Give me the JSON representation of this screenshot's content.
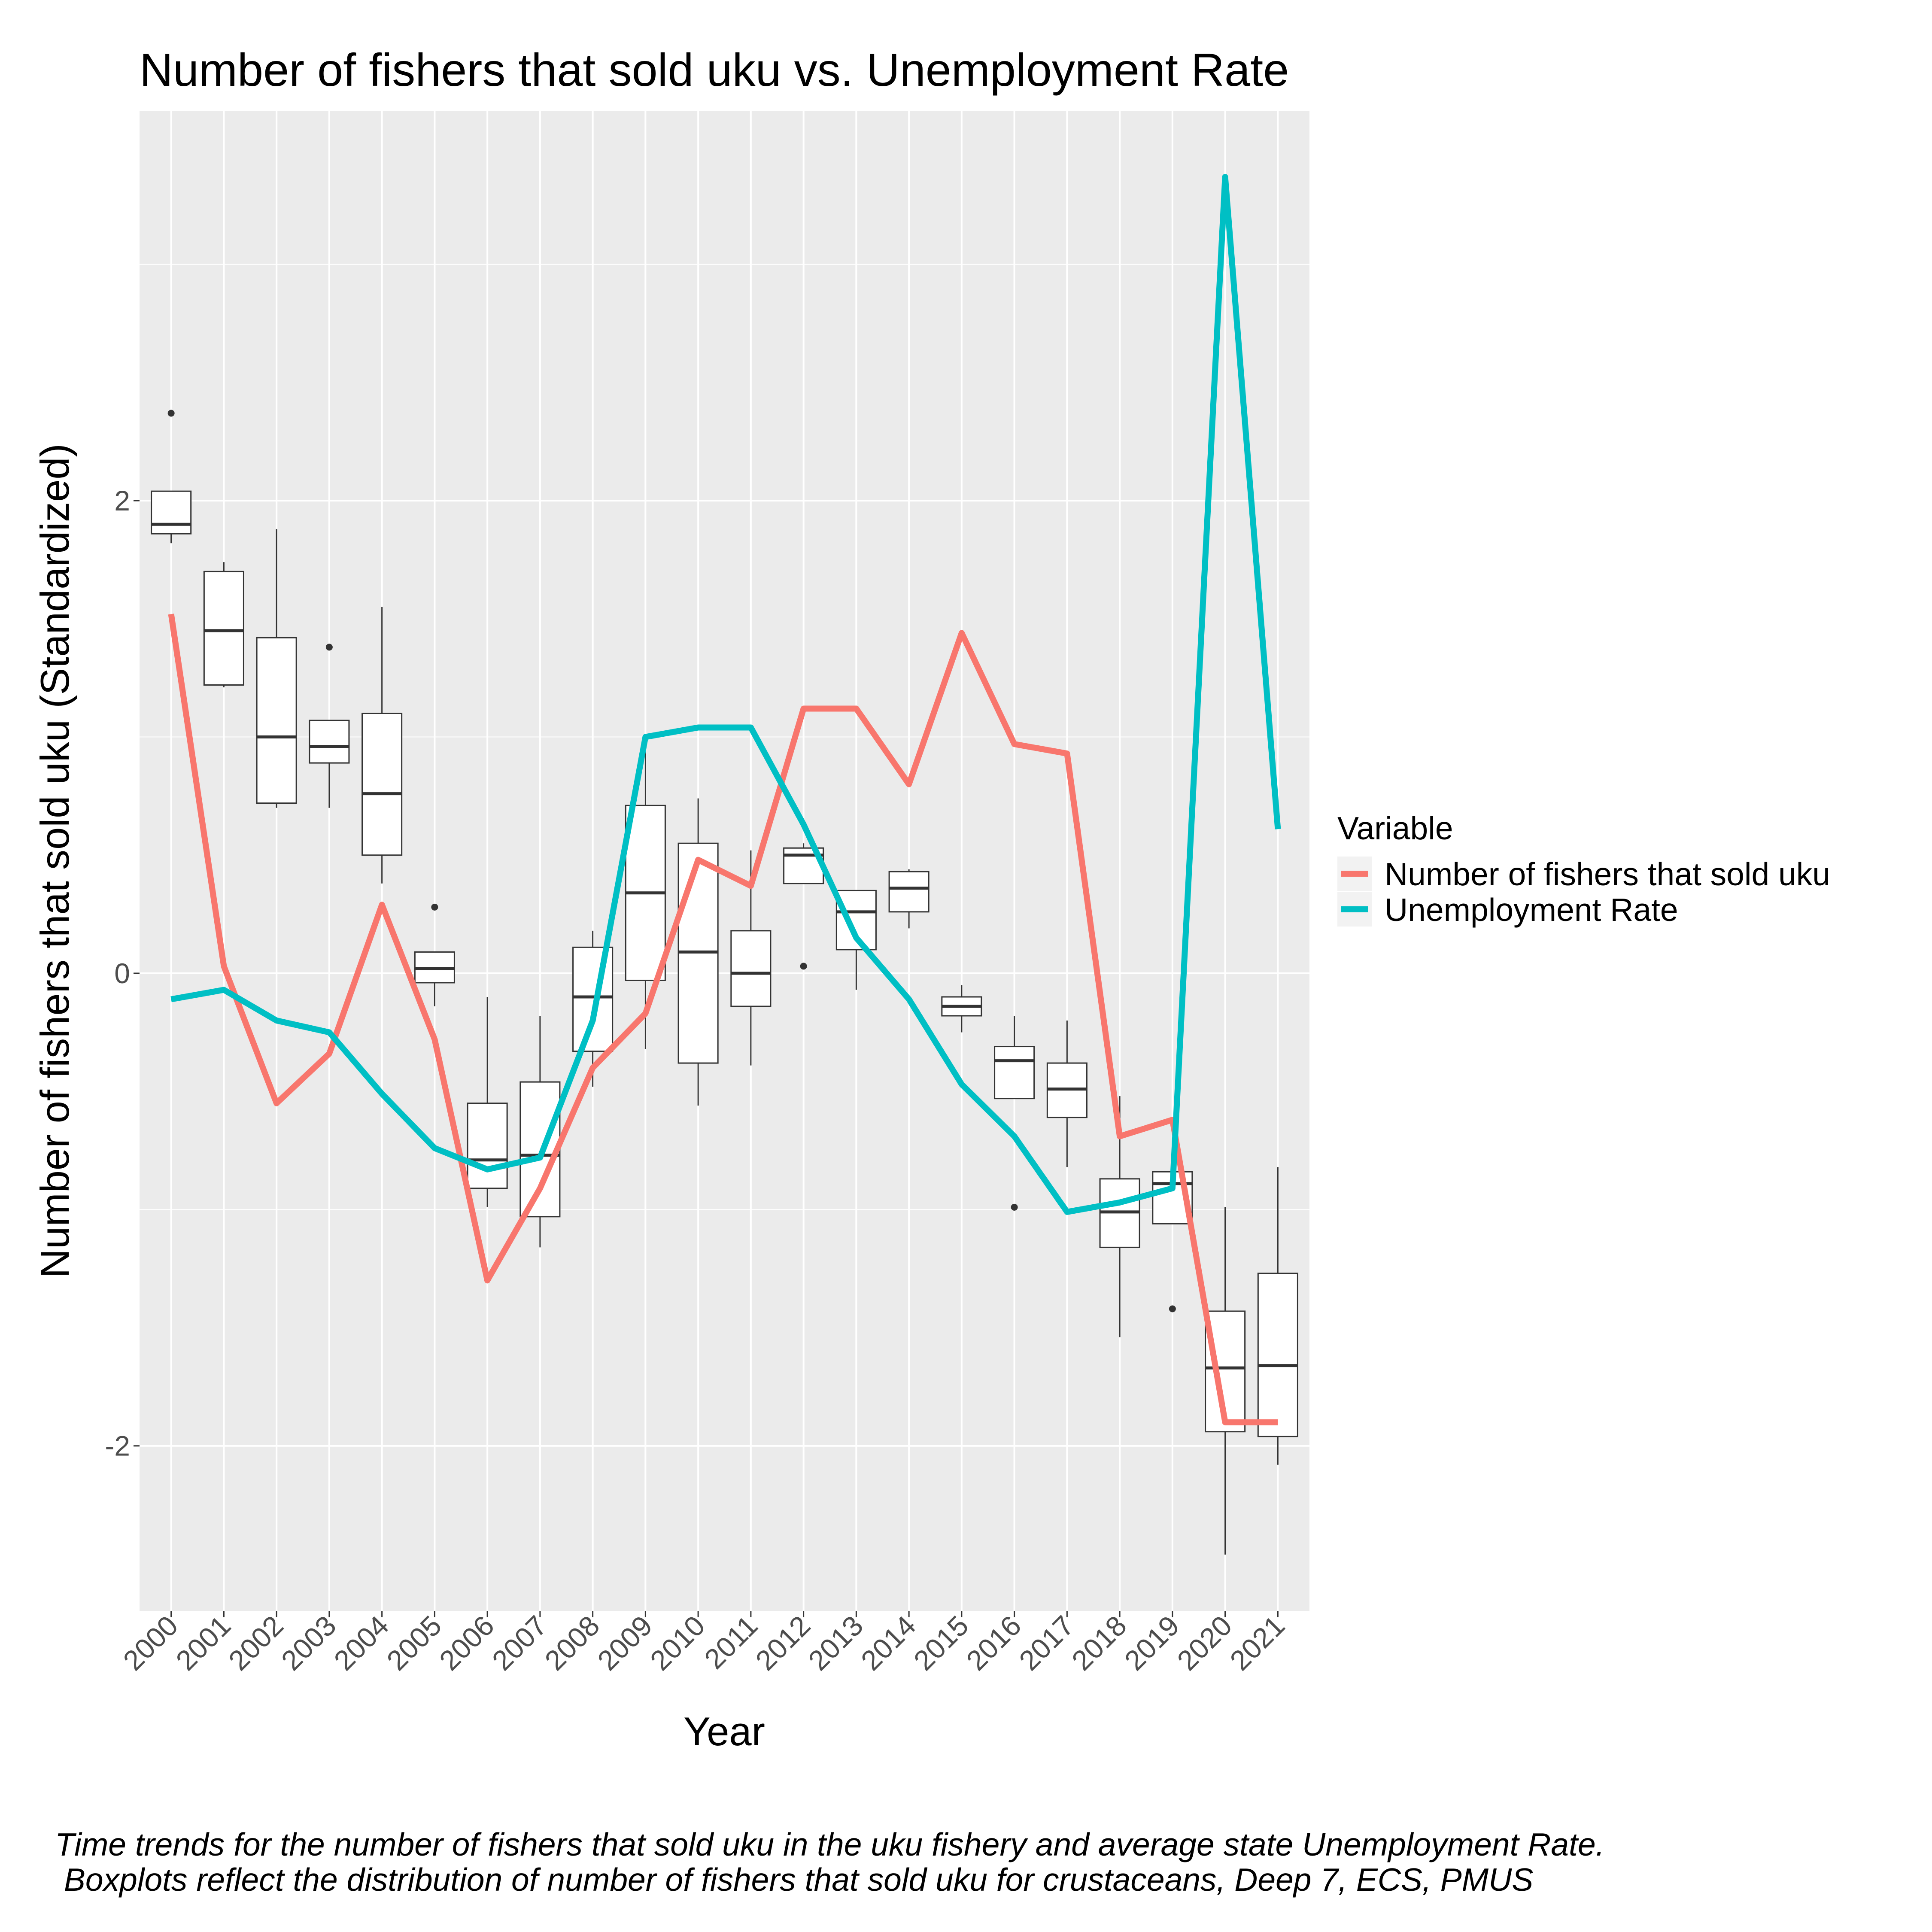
{
  "chart_data": {
    "type": "line",
    "title": "Number of fishers that sold uku vs. Unemployment Rate",
    "xlabel": "Year",
    "ylabel": "Number of fishers that sold uku (Standardized)",
    "categories": [
      "2000",
      "2001",
      "2002",
      "2003",
      "2004",
      "2005",
      "2006",
      "2007",
      "2008",
      "2009",
      "2010",
      "2011",
      "2012",
      "2013",
      "2014",
      "2015",
      "2016",
      "2017",
      "2018",
      "2019",
      "2020",
      "2021"
    ],
    "ylim": [
      -2.7,
      3.65
    ],
    "yticks": [
      -2,
      0,
      2
    ],
    "ytick_labels": [
      "-2",
      "0",
      "2"
    ],
    "grid": true,
    "legend": {
      "title": "Variable",
      "position": "right"
    },
    "series": [
      {
        "name": "Number of fishers that sold uku",
        "color": "#F8766D",
        "values": [
          1.52,
          0.03,
          -0.55,
          -0.34,
          0.29,
          -0.28,
          -1.3,
          -0.91,
          -0.4,
          -0.17,
          0.48,
          0.37,
          1.12,
          1.12,
          0.8,
          1.44,
          0.97,
          0.93,
          -0.69,
          -0.62,
          -1.9,
          -1.9
        ]
      },
      {
        "name": "Unemployment Rate",
        "color": "#00BFC4",
        "values": [
          -0.11,
          -0.07,
          -0.2,
          -0.25,
          -0.51,
          -0.74,
          -0.83,
          -0.78,
          -0.2,
          1.0,
          1.04,
          1.04,
          0.63,
          0.15,
          -0.11,
          -0.47,
          -0.69,
          -1.01,
          -0.97,
          -0.91,
          3.37,
          0.61
        ]
      }
    ],
    "boxplots": [
      {
        "x": "2000",
        "q1": 1.86,
        "median": 1.9,
        "q3": 2.04,
        "lower": 1.82,
        "upper": 2.04,
        "outliers": [
          2.37
        ]
      },
      {
        "x": "2001",
        "q1": 1.22,
        "median": 1.45,
        "q3": 1.7,
        "lower": 1.21,
        "upper": 1.74,
        "outliers": []
      },
      {
        "x": "2002",
        "q1": 0.72,
        "median": 1.0,
        "q3": 1.42,
        "lower": 0.7,
        "upper": 1.88,
        "outliers": []
      },
      {
        "x": "2003",
        "q1": 0.89,
        "median": 0.96,
        "q3": 1.07,
        "lower": 0.7,
        "upper": 1.07,
        "outliers": [
          1.38
        ]
      },
      {
        "x": "2004",
        "q1": 0.5,
        "median": 0.76,
        "q3": 1.1,
        "lower": 0.38,
        "upper": 1.55,
        "outliers": []
      },
      {
        "x": "2005",
        "q1": -0.04,
        "median": 0.02,
        "q3": 0.09,
        "lower": -0.14,
        "upper": 0.09,
        "outliers": [
          0.28
        ]
      },
      {
        "x": "2006",
        "q1": -0.91,
        "median": -0.79,
        "q3": -0.55,
        "lower": -0.99,
        "upper": -0.1,
        "outliers": []
      },
      {
        "x": "2007",
        "q1": -1.03,
        "median": -0.77,
        "q3": -0.46,
        "lower": -1.16,
        "upper": -0.18,
        "outliers": []
      },
      {
        "x": "2008",
        "q1": -0.33,
        "median": -0.1,
        "q3": 0.11,
        "lower": -0.48,
        "upper": 0.18,
        "outliers": []
      },
      {
        "x": "2009",
        "q1": -0.03,
        "median": 0.34,
        "q3": 0.71,
        "lower": -0.32,
        "upper": 0.95,
        "outliers": []
      },
      {
        "x": "2010",
        "q1": -0.38,
        "median": 0.09,
        "q3": 0.55,
        "lower": -0.56,
        "upper": 0.74,
        "outliers": []
      },
      {
        "x": "2011",
        "q1": -0.14,
        "median": 0.0,
        "q3": 0.18,
        "lower": -0.39,
        "upper": 0.52,
        "outliers": []
      },
      {
        "x": "2012",
        "q1": 0.38,
        "median": 0.5,
        "q3": 0.53,
        "lower": 0.38,
        "upper": 0.55,
        "outliers": [
          0.03
        ]
      },
      {
        "x": "2013",
        "q1": 0.1,
        "median": 0.26,
        "q3": 0.35,
        "lower": -0.07,
        "upper": 0.35,
        "outliers": []
      },
      {
        "x": "2014",
        "q1": 0.26,
        "median": 0.36,
        "q3": 0.43,
        "lower": 0.19,
        "upper": 0.44,
        "outliers": []
      },
      {
        "x": "2015",
        "q1": -0.18,
        "median": -0.14,
        "q3": -0.1,
        "lower": -0.25,
        "upper": -0.05,
        "outliers": []
      },
      {
        "x": "2016",
        "q1": -0.53,
        "median": -0.37,
        "q3": -0.31,
        "lower": -0.53,
        "upper": -0.18,
        "outliers": [
          -0.99
        ]
      },
      {
        "x": "2017",
        "q1": -0.61,
        "median": -0.49,
        "q3": -0.38,
        "lower": -0.82,
        "upper": -0.2,
        "outliers": []
      },
      {
        "x": "2018",
        "q1": -1.16,
        "median": -1.01,
        "q3": -0.87,
        "lower": -1.54,
        "upper": -0.52,
        "outliers": []
      },
      {
        "x": "2019",
        "q1": -1.06,
        "median": -0.89,
        "q3": -0.84,
        "lower": -1.06,
        "upper": -0.84,
        "outliers": [
          -1.42
        ]
      },
      {
        "x": "2020",
        "q1": -1.94,
        "median": -1.67,
        "q3": -1.43,
        "lower": -2.46,
        "upper": -0.99,
        "outliers": []
      },
      {
        "x": "2021",
        "q1": -1.96,
        "median": -1.66,
        "q3": -1.27,
        "lower": -2.08,
        "upper": -0.82,
        "outliers": []
      }
    ]
  },
  "caption": {
    "line1": "Time trends for the number of fishers that sold uku in the uku fishery and average state Unemployment Rate.",
    "line2": " Boxplots reflect the distribution of number of fishers that sold uku for crustaceans, Deep 7, ECS, PMUS"
  }
}
